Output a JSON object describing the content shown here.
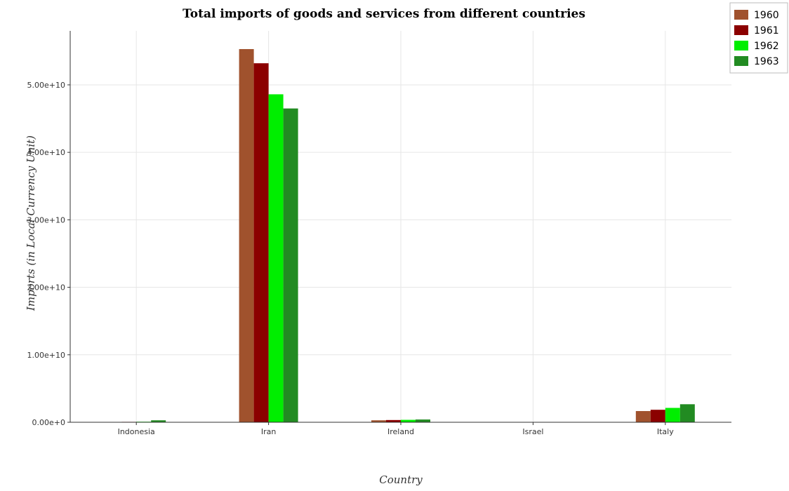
{
  "chart_data": {
    "type": "bar",
    "title": "Total imports of goods and services from different countries",
    "xlabel": "Country",
    "ylabel": "Imports (in Local Currency Unit)",
    "categories": [
      "Indonesia",
      "Iran",
      "Ireland",
      "Israel",
      "Italy"
    ],
    "series": [
      {
        "name": "1960",
        "color": "#a0522d",
        "values": [
          40000000.0,
          55300000000.0,
          290000000.0,
          1000000.0,
          1660000000.0
        ]
      },
      {
        "name": "1961",
        "color": "#8b0000",
        "values": [
          60000000.0,
          53200000000.0,
          330000000.0,
          1000000.0,
          1850000000.0
        ]
      },
      {
        "name": "1962",
        "color": "#00ee00",
        "values": [
          80000000.0,
          48600000000.0,
          360000000.0,
          2000000.0,
          2130000000.0
        ]
      },
      {
        "name": "1963",
        "color": "#228b22",
        "values": [
          290000000.0,
          46500000000.0,
          410000000.0,
          3000000.0,
          2670000000.0
        ]
      }
    ],
    "yticks": [
      0,
      10000000000.0,
      20000000000.0,
      30000000000.0,
      40000000000.0,
      50000000000.0
    ],
    "ytick_labels": [
      "0.00e+0",
      "1.00e+10",
      "2.00e+10",
      "3.00e+10",
      "4.00e+10",
      "5.00e+10"
    ],
    "ylim": [
      0,
      58000000000.0
    ],
    "grid": true,
    "legend_position": "top-right"
  }
}
